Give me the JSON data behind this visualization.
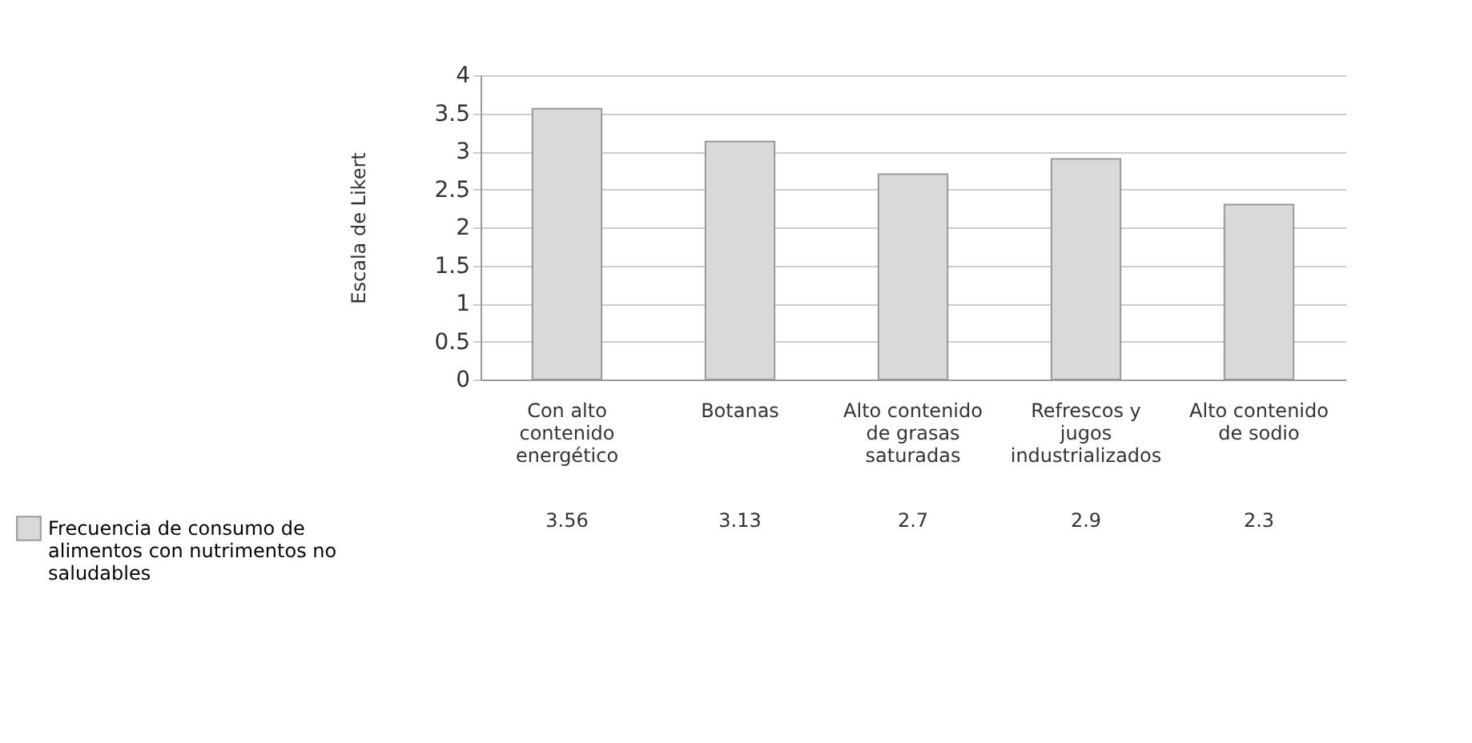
{
  "chart_data": {
    "type": "bar",
    "ylabel": "Escala de Likert",
    "categories": [
      "Con alto contenido energético",
      "Botanas",
      "Alto contenido de grasas saturadas",
      "Refrescos y jugos industrializados",
      "Alto contenido de sodio"
    ],
    "series": [
      {
        "name": "Frecuencia de consumo de alimentos con nutrimentos no saludables",
        "color": "#d9d9d9",
        "values": [
          3.56,
          3.13,
          2.7,
          2.9,
          2.3
        ]
      }
    ],
    "ylim": [
      0,
      4
    ],
    "yticks": [
      0,
      0.5,
      1,
      1.5,
      2,
      2.5,
      3,
      3.5,
      4
    ],
    "grid": "y",
    "legend": "bottom left",
    "value_labels": [
      "3.56",
      "3.13",
      "2.7",
      "2.9",
      "2.3"
    ]
  }
}
